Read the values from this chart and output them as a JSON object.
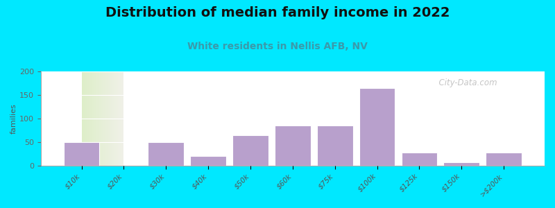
{
  "title": "Distribution of median family income in 2022",
  "subtitle": "White residents in Nellis AFB, NV",
  "ylabel": "families",
  "categories": [
    "$10k",
    "$20k",
    "$30k",
    "$40k",
    "$50k",
    "$60k",
    "$75k",
    "$100k",
    "$125k",
    "$150k",
    ">$200k"
  ],
  "values": [
    50,
    0,
    50,
    20,
    65,
    85,
    85,
    165,
    28,
    7,
    28
  ],
  "bar_color": "#b8a0cc",
  "bar_edge_color": "#ffffff",
  "ylim": [
    0,
    200
  ],
  "yticks": [
    0,
    50,
    100,
    150,
    200
  ],
  "background_outer": "#00e8ff",
  "background_plot_left": "#ddeec8",
  "background_plot_right": "#f0f0e8",
  "title_fontsize": 14,
  "subtitle_fontsize": 10,
  "subtitle_color": "#3a9aaa",
  "ylabel_fontsize": 8,
  "watermark": "  City-Data.com",
  "watermark_color": "#bbbbbb"
}
